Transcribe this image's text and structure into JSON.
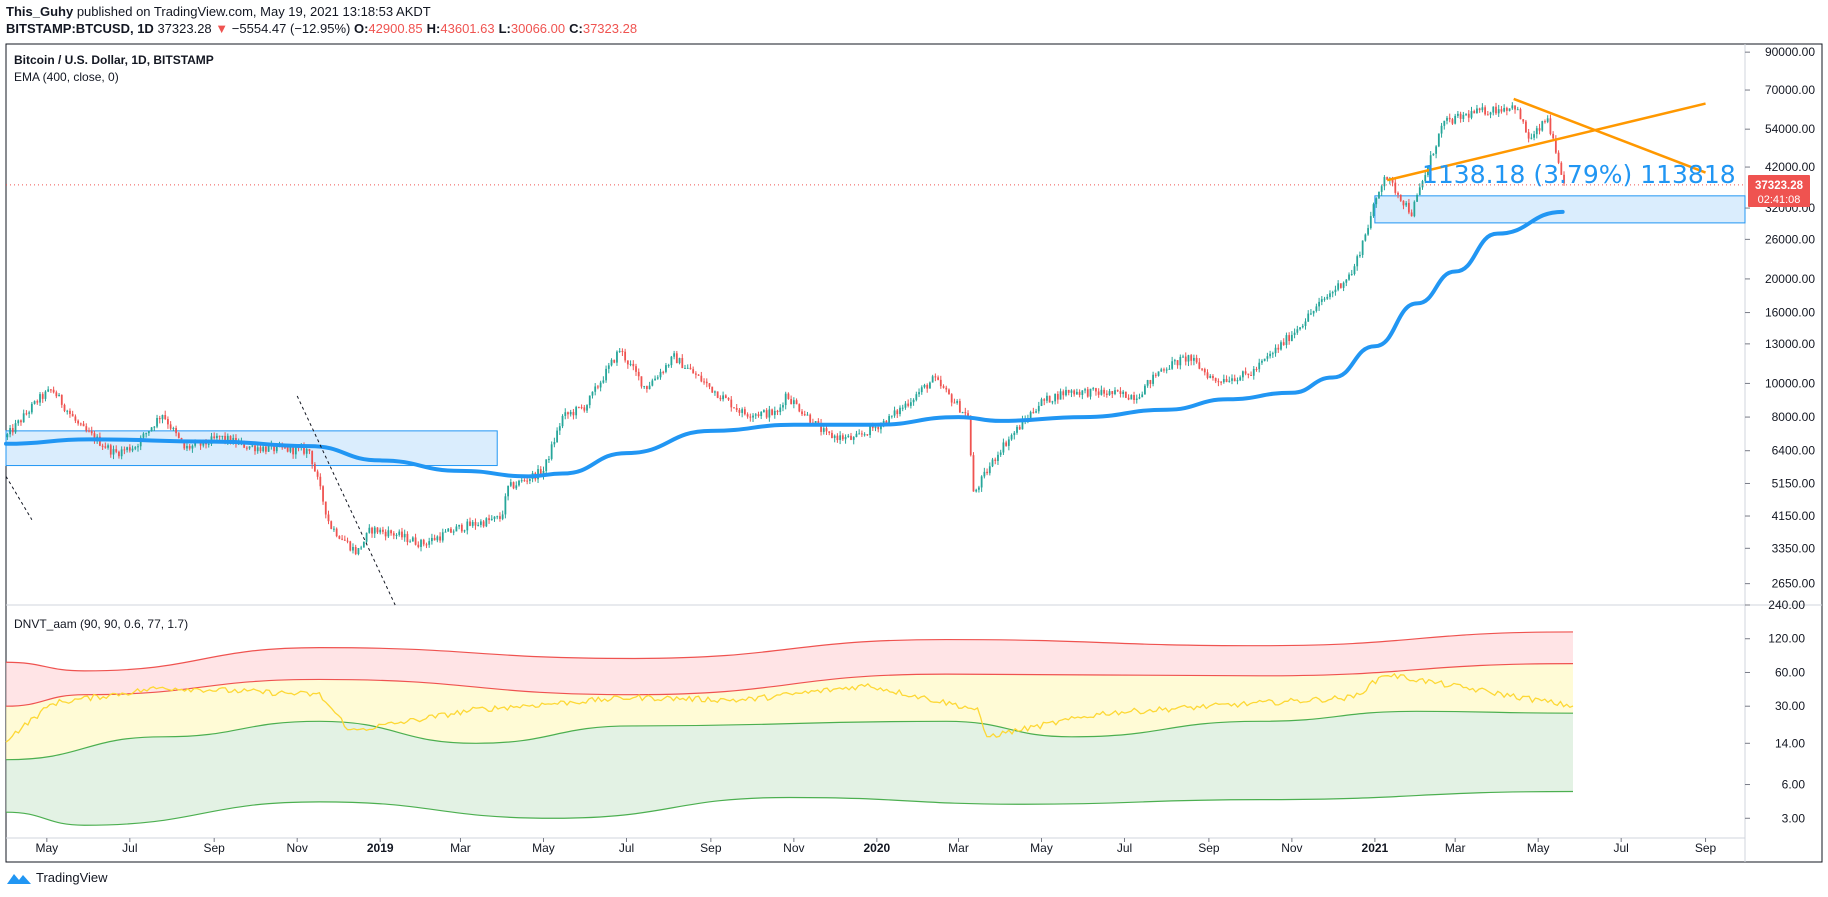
{
  "header": {
    "author": "This_Guhy",
    "published_text": "published on TradingView.com, May 19, 2021 13:18:53 AKDT",
    "symbol": "BITSTAMP:BTCUSD, 1D",
    "last": "37323.28",
    "change": "−5554.47 (−12.95%)",
    "o_label": "O:",
    "o": "42900.85",
    "h_label": "H:",
    "h": "43601.63",
    "l_label": "L:",
    "l": "30066.00",
    "c_label": "C:",
    "c": "37323.28"
  },
  "legend": {
    "title": "Bitcoin / U.S. Dollar, 1D, BITSTAMP",
    "ema": "EMA (400, close, 0)",
    "indicator": "DNVT_aam (90, 90, 0.6, 77, 1.7)"
  },
  "annotation_text": "1138.18 (3.79%) 113818",
  "price_tag": {
    "price": "37323.28",
    "countdown": "02:41:08"
  },
  "footer": {
    "brand": "TradingView"
  },
  "colors": {
    "up": "#26a69a",
    "down": "#ef5350",
    "ema": "#2196f3",
    "trend": "#ff9800",
    "box_fill": "#bbdefb",
    "box_stroke": "#2196f3",
    "ind_yellow": "#ffeb3b",
    "ind_red": "#ef5350",
    "ind_green": "#4caf50"
  },
  "chart_data": [
    {
      "type": "candlestick",
      "title": "Bitcoin / U.S. Dollar, 1D, BITSTAMP",
      "scale": "log",
      "y_ticks": [
        "90000.00",
        "70000.00",
        "54000.00",
        "42000.00",
        "32000.00",
        "26000.00",
        "20000.00",
        "16000.00",
        "13000.00",
        "10000.00",
        "8000.00",
        "6400.00",
        "5150.00",
        "4150.00",
        "3350.00",
        "2650.00"
      ],
      "x_ticks": [
        "May",
        "Jul",
        "Sep",
        "Nov",
        "2019",
        "Mar",
        "May",
        "Jul",
        "Sep",
        "Nov",
        "2020",
        "Mar",
        "May",
        "Jul",
        "Sep",
        "Nov",
        "2021",
        "Mar",
        "May",
        "Jul",
        "Sep"
      ],
      "x_ticks_bold": [
        "2019",
        "2020",
        "2021"
      ],
      "x_range": [
        "2018-04-01",
        "2021-09-30"
      ],
      "ylim": [
        2300,
        95000
      ],
      "price_path": [
        [
          "2018-04-01",
          7000
        ],
        [
          "2018-04-25",
          9000
        ],
        [
          "2018-05-05",
          9600
        ],
        [
          "2018-05-25",
          7500
        ],
        [
          "2018-06-20",
          6300
        ],
        [
          "2018-07-05",
          6600
        ],
        [
          "2018-07-25",
          8200
        ],
        [
          "2018-08-10",
          6500
        ],
        [
          "2018-08-25",
          6700
        ],
        [
          "2018-09-05",
          7000
        ],
        [
          "2018-09-25",
          6600
        ],
        [
          "2018-10-10",
          6500
        ],
        [
          "2018-11-10",
          6400
        ],
        [
          "2018-11-20",
          4600
        ],
        [
          "2018-11-25",
          3900
        ],
        [
          "2018-12-15",
          3250
        ],
        [
          "2018-12-25",
          3800
        ],
        [
          "2019-01-10",
          3700
        ],
        [
          "2019-02-01",
          3450
        ],
        [
          "2019-03-01",
          3850
        ],
        [
          "2019-03-31",
          4100
        ],
        [
          "2019-04-05",
          5000
        ],
        [
          "2019-05-01",
          5600
        ],
        [
          "2019-05-15",
          8000
        ],
        [
          "2019-06-01",
          8600
        ],
        [
          "2019-06-26",
          12500
        ],
        [
          "2019-07-15",
          9700
        ],
        [
          "2019-08-05",
          11900
        ],
        [
          "2019-09-01",
          9700
        ],
        [
          "2019-09-25",
          8200
        ],
        [
          "2019-10-20",
          8200
        ],
        [
          "2019-10-26",
          9300
        ],
        [
          "2019-11-25",
          7100
        ],
        [
          "2019-12-15",
          6900
        ],
        [
          "2020-01-10",
          7900
        ],
        [
          "2020-02-12",
          10300
        ],
        [
          "2020-03-08",
          8000
        ],
        [
          "2020-03-12",
          4800
        ],
        [
          "2020-04-01",
          6500
        ],
        [
          "2020-04-30",
          8800
        ],
        [
          "2020-05-20",
          9500
        ],
        [
          "2020-06-15",
          9400
        ],
        [
          "2020-07-10",
          9200
        ],
        [
          "2020-07-28",
          11000
        ],
        [
          "2020-08-17",
          11900
        ],
        [
          "2020-09-05",
          10200
        ],
        [
          "2020-10-01",
          10600
        ],
        [
          "2020-10-25",
          13000
        ],
        [
          "2020-11-25",
          17500
        ],
        [
          "2020-12-16",
          21000
        ],
        [
          "2021-01-08",
          40000
        ],
        [
          "2021-01-28",
          31000
        ],
        [
          "2021-02-20",
          56000
        ],
        [
          "2021-03-13",
          60000
        ],
        [
          "2021-04-14",
          63000
        ],
        [
          "2021-04-25",
          50000
        ],
        [
          "2021-05-08",
          58000
        ],
        [
          "2021-05-19",
          37323
        ]
      ],
      "series": [
        {
          "name": "EMA (400, close, 0)",
          "values": [
            [
              "2018-04-01",
              6700
            ],
            [
              "2018-06-01",
              6900
            ],
            [
              "2018-09-01",
              6800
            ],
            [
              "2018-11-10",
              6600
            ],
            [
              "2019-01-01",
              6000
            ],
            [
              "2019-03-01",
              5600
            ],
            [
              "2019-04-20",
              5400
            ],
            [
              "2019-05-15",
              5500
            ],
            [
              "2019-07-01",
              6300
            ],
            [
              "2019-09-01",
              7300
            ],
            [
              "2019-11-01",
              7600
            ],
            [
              "2019-12-31",
              7600
            ],
            [
              "2020-03-01",
              8000
            ],
            [
              "2020-04-01",
              7800
            ],
            [
              "2020-06-01",
              8000
            ],
            [
              "2020-08-01",
              8400
            ],
            [
              "2020-09-15",
              9000
            ],
            [
              "2020-11-01",
              9400
            ],
            [
              "2020-12-01",
              10400
            ],
            [
              "2021-01-01",
              12800
            ],
            [
              "2021-02-01",
              17000
            ],
            [
              "2021-03-01",
              21000
            ],
            [
              "2021-04-01",
              27000
            ],
            [
              "2021-05-19",
              31200
            ]
          ]
        }
      ],
      "current_price": 37323.28
    },
    {
      "type": "line",
      "title": "DNVT_aam (90, 90, 0.6, 77, 1.7)",
      "scale": "log",
      "y_ticks": [
        "240.00",
        "120.00",
        "60.00",
        "30.00",
        "14.00",
        "6.00",
        "3.00"
      ],
      "ylim": [
        2,
        240
      ],
      "series": [
        {
          "name": "upper-red",
          "values": [
            [
              0,
              74
            ],
            [
              0.05,
              62
            ],
            [
              0.2,
              100
            ],
            [
              0.4,
              80
            ],
            [
              0.6,
              118
            ],
            [
              0.8,
              104
            ],
            [
              1.0,
              138
            ]
          ]
        },
        {
          "name": "mid-red",
          "values": [
            [
              0,
              30
            ],
            [
              0.05,
              38
            ],
            [
              0.2,
              52
            ],
            [
              0.4,
              38
            ],
            [
              0.6,
              58
            ],
            [
              0.8,
              56
            ],
            [
              1.0,
              72
            ]
          ]
        },
        {
          "name": "yellow",
          "values": [
            [
              0,
              15
            ],
            [
              0.03,
              32
            ],
            [
              0.1,
              44
            ],
            [
              0.2,
              38
            ],
            [
              0.22,
              18
            ],
            [
              0.3,
              28
            ],
            [
              0.4,
              36
            ],
            [
              0.47,
              34
            ],
            [
              0.55,
              46
            ],
            [
              0.62,
              28
            ],
            [
              0.625,
              16
            ],
            [
              0.7,
              26
            ],
            [
              0.8,
              32
            ],
            [
              0.86,
              36
            ],
            [
              0.88,
              58
            ],
            [
              0.93,
              44
            ],
            [
              1.0,
              30
            ]
          ]
        },
        {
          "name": "mid-green",
          "values": [
            [
              0,
              10
            ],
            [
              0.1,
              16
            ],
            [
              0.2,
              22
            ],
            [
              0.3,
              14
            ],
            [
              0.4,
              20
            ],
            [
              0.6,
              22
            ],
            [
              0.68,
              16
            ],
            [
              0.8,
              22
            ],
            [
              0.9,
              27
            ],
            [
              1.0,
              26
            ]
          ]
        },
        {
          "name": "lower-green",
          "values": [
            [
              0,
              3.4
            ],
            [
              0.05,
              2.6
            ],
            [
              0.2,
              4.2
            ],
            [
              0.35,
              3.0
            ],
            [
              0.5,
              4.6
            ],
            [
              0.65,
              4.0
            ],
            [
              0.8,
              4.4
            ],
            [
              1.0,
              5.2
            ]
          ]
        }
      ]
    }
  ]
}
